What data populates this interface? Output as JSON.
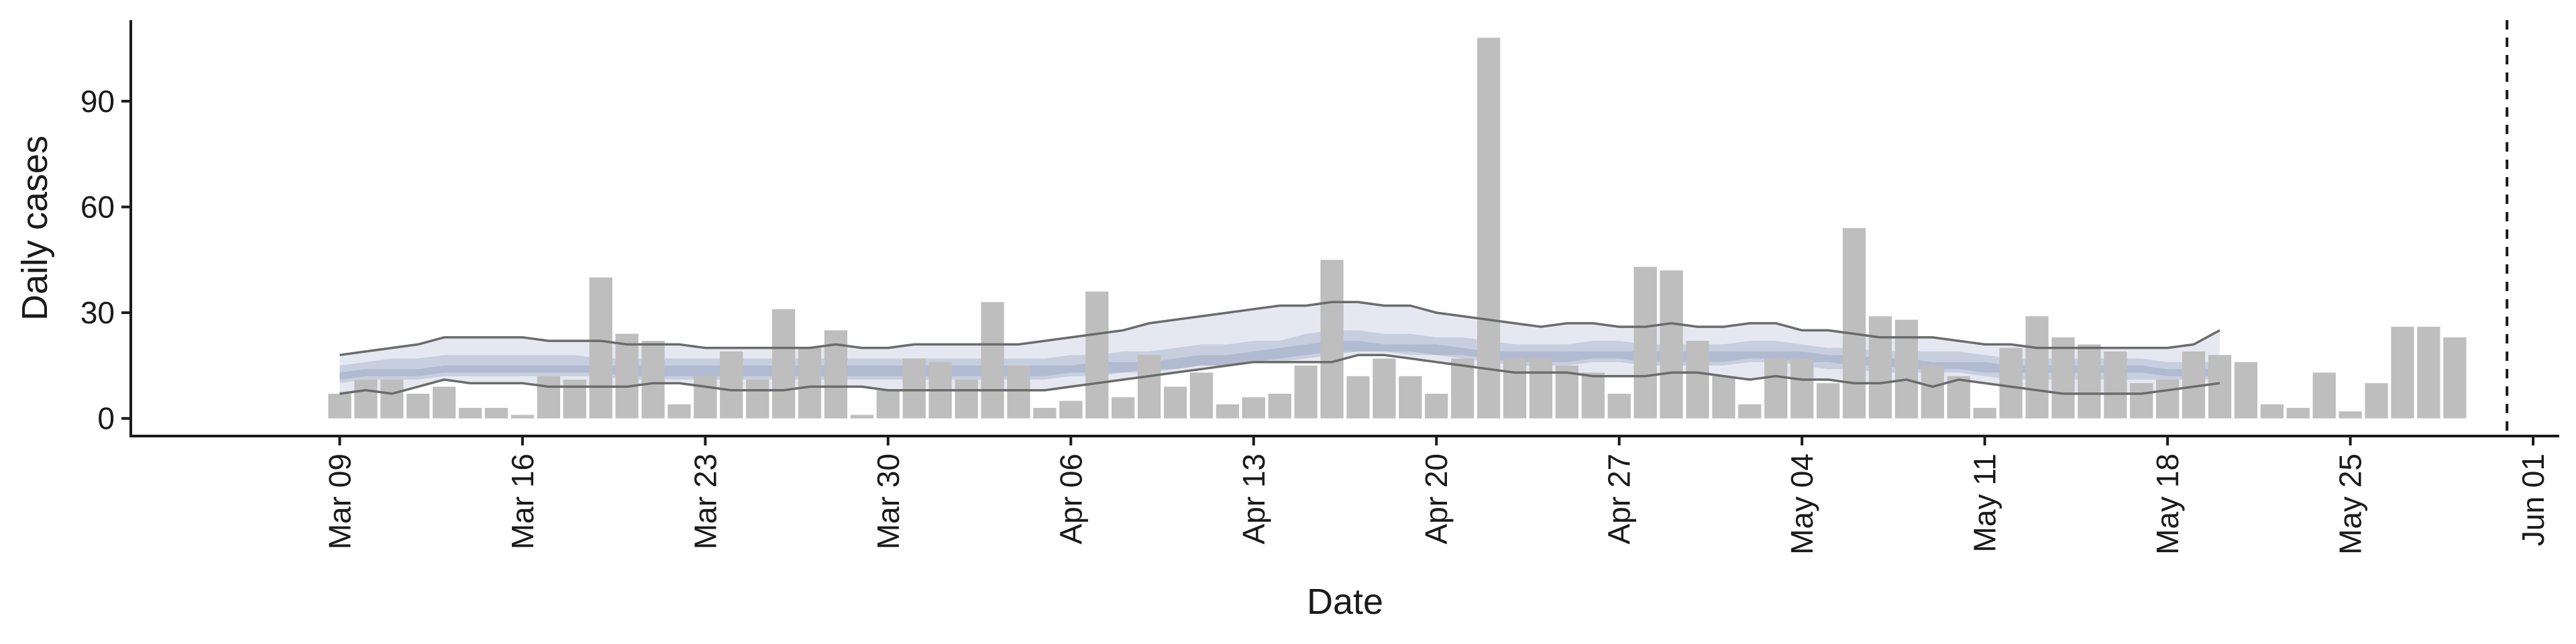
{
  "chart_data": {
    "type": "bar",
    "xlabel": "Date",
    "ylabel": "Daily cases",
    "ylim": [
      -5,
      113
    ],
    "xlim": [
      "2020-03-01",
      "2020-06-02"
    ],
    "yticks": [
      0,
      30,
      60,
      90
    ],
    "xtick_dates": [
      "2020-03-09",
      "2020-03-16",
      "2020-03-23",
      "2020-03-30",
      "2020-04-06",
      "2020-04-13",
      "2020-04-20",
      "2020-04-27",
      "2020-05-04",
      "2020-05-11",
      "2020-05-18",
      "2020-05-25",
      "2020-06-01"
    ],
    "xtick_labels": [
      "Mar 09",
      "Mar 16",
      "Mar 23",
      "Mar 30",
      "Apr 06",
      "Apr 13",
      "Apr 20",
      "Apr 27",
      "May 04",
      "May 11",
      "May 18",
      "May 25",
      "Jun 01"
    ],
    "bar_start_date": "2020-03-09",
    "bar_color": "#bebebe",
    "daily_cases": [
      7,
      11,
      11,
      7,
      9,
      3,
      3,
      1,
      12,
      11,
      40,
      24,
      22,
      4,
      12,
      19,
      11,
      31,
      20,
      25,
      1,
      8,
      17,
      16,
      11,
      33,
      15,
      3,
      5,
      36,
      6,
      18,
      9,
      13,
      4,
      6,
      7,
      15,
      45,
      12,
      17,
      12,
      7,
      17,
      108,
      17,
      17,
      15,
      13,
      7,
      43,
      42,
      22,
      12,
      4,
      17,
      17,
      10,
      54,
      29,
      28,
      15,
      12,
      3,
      20,
      29,
      23,
      21,
      19,
      10,
      11,
      19,
      18,
      16,
      4,
      3,
      13,
      2,
      10,
      26,
      26,
      23
    ],
    "band_start_date": "2020-03-09",
    "band_colors": {
      "outer": "#e6e8f1",
      "inner": "#c1cadc",
      "line": "#6b6b6b"
    },
    "outer_band": {
      "upper": [
        18,
        19,
        20,
        21,
        23,
        23,
        23,
        23,
        22,
        22,
        22,
        21,
        21,
        21,
        20,
        20,
        20,
        20,
        20,
        21,
        20,
        20,
        21,
        21,
        21,
        21,
        21,
        22,
        23,
        24,
        25,
        27,
        28,
        29,
        30,
        31,
        32,
        32,
        33,
        33,
        32,
        32,
        30,
        29,
        28,
        27,
        26,
        27,
        27,
        26,
        26,
        27,
        26,
        26,
        27,
        27,
        25,
        25,
        24,
        23,
        23,
        23,
        22,
        21,
        21,
        20,
        20,
        20,
        20,
        20,
        20,
        21,
        25
      ],
      "lower": [
        7,
        8,
        7,
        9,
        11,
        10,
        10,
        10,
        9,
        9,
        9,
        9,
        10,
        10,
        9,
        8,
        8,
        8,
        9,
        9,
        9,
        8,
        8,
        8,
        8,
        8,
        8,
        8,
        9,
        10,
        11,
        12,
        13,
        14,
        15,
        16,
        16,
        16,
        16,
        18,
        18,
        17,
        16,
        15,
        14,
        13,
        13,
        13,
        12,
        12,
        12,
        13,
        13,
        12,
        11,
        12,
        11,
        11,
        10,
        10,
        11,
        9,
        11,
        10,
        9,
        8,
        7,
        7,
        7,
        7,
        8,
        9,
        10
      ]
    },
    "inner_band": {
      "upper": [
        15,
        16,
        17,
        17,
        18,
        18,
        18,
        18,
        18,
        18,
        17,
        17,
        17,
        17,
        17,
        17,
        17,
        17,
        17,
        17,
        17,
        17,
        17,
        17,
        17,
        17,
        17,
        17,
        18,
        18,
        19,
        19,
        20,
        21,
        21,
        22,
        22,
        24,
        25,
        25,
        24,
        24,
        23,
        23,
        22,
        21,
        21,
        21,
        22,
        22,
        21,
        21,
        21,
        21,
        22,
        22,
        21,
        20,
        20,
        19,
        19,
        19,
        19,
        18,
        17,
        17,
        17,
        17,
        17,
        17,
        16,
        16,
        16
      ],
      "lower": [
        10,
        11,
        11,
        11,
        12,
        12,
        12,
        12,
        12,
        12,
        12,
        11,
        11,
        11,
        11,
        11,
        11,
        11,
        11,
        11,
        11,
        11,
        11,
        11,
        11,
        11,
        11,
        11,
        12,
        12,
        13,
        13,
        14,
        15,
        15,
        16,
        16,
        17,
        18,
        19,
        19,
        18,
        18,
        17,
        16,
        15,
        15,
        15,
        16,
        16,
        15,
        15,
        15,
        15,
        16,
        16,
        15,
        14,
        14,
        13,
        13,
        13,
        13,
        12,
        11,
        11,
        11,
        11,
        11,
        11,
        11,
        11,
        11
      ]
    },
    "core_band": {
      "upper": [
        13,
        14,
        14,
        14,
        15,
        15,
        15,
        15,
        15,
        15,
        15,
        15,
        15,
        15,
        15,
        15,
        15,
        15,
        15,
        15,
        15,
        15,
        15,
        15,
        15,
        15,
        15,
        15,
        15,
        16,
        16,
        16,
        17,
        18,
        18,
        19,
        20,
        21,
        22,
        22,
        21,
        21,
        21,
        20,
        19,
        19,
        19,
        19,
        19,
        19,
        19,
        19,
        19,
        19,
        19,
        19,
        19,
        18,
        18,
        17,
        17,
        16,
        16,
        16,
        15,
        15,
        15,
        15,
        15,
        15,
        14,
        14,
        14
      ],
      "lower": [
        11,
        12,
        12,
        12,
        13,
        13,
        13,
        13,
        13,
        13,
        13,
        12,
        12,
        12,
        12,
        12,
        12,
        12,
        12,
        12,
        12,
        12,
        12,
        12,
        12,
        12,
        12,
        12,
        13,
        13,
        13,
        14,
        14,
        15,
        15,
        16,
        17,
        18,
        19,
        19,
        19,
        19,
        18,
        18,
        17,
        16,
        16,
        16,
        17,
        17,
        16,
        16,
        16,
        16,
        17,
        17,
        16,
        16,
        15,
        15,
        14,
        14,
        14,
        13,
        13,
        13,
        13,
        13,
        13,
        13,
        12,
        12,
        12
      ]
    },
    "projection_line_date": "2020-05-31"
  }
}
